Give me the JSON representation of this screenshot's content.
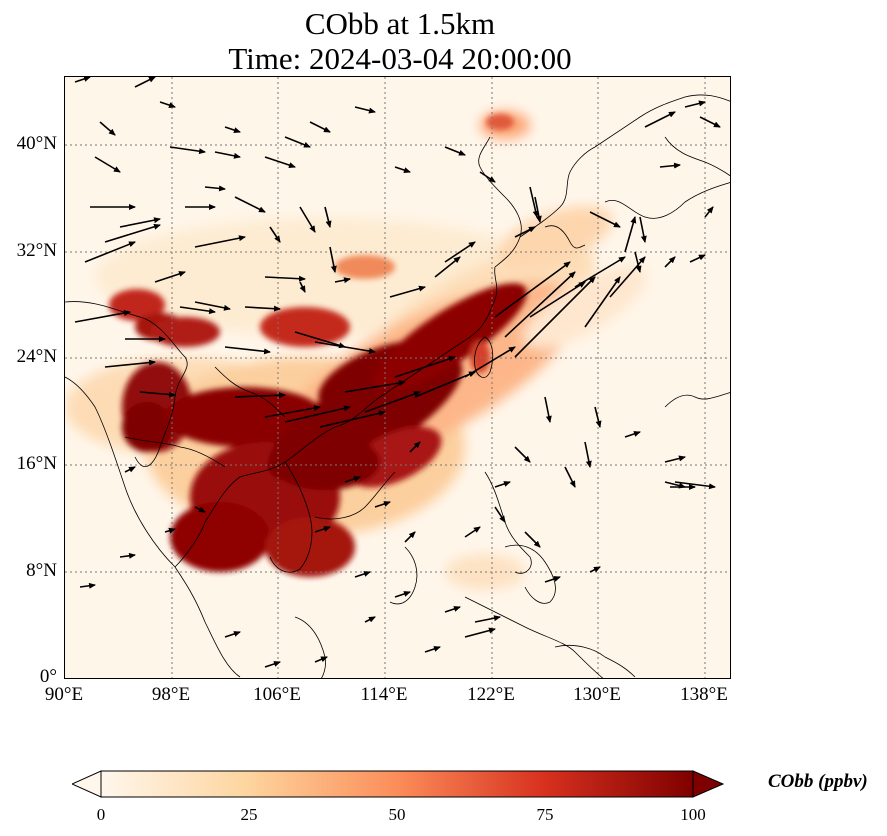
{
  "figure": {
    "title_line1": "CObb at 1.5km",
    "title_line2": "Time: 2024-03-04 20:00:00"
  },
  "map": {
    "lon_range": [
      90,
      140
    ],
    "lat_range": [
      0,
      45
    ],
    "lat_ticks": [
      {
        "value": 0,
        "label": "0°"
      },
      {
        "value": 8,
        "label": "8°N"
      },
      {
        "value": 16,
        "label": "16°N"
      },
      {
        "value": 24,
        "label": "24°N"
      },
      {
        "value": 32,
        "label": "32°N"
      },
      {
        "value": 40,
        "label": "40°N"
      }
    ],
    "lon_ticks": [
      {
        "value": 90,
        "label": "90°E"
      },
      {
        "value": 98,
        "label": "98°E"
      },
      {
        "value": 106,
        "label": "106°E"
      },
      {
        "value": 114,
        "label": "114°E"
      },
      {
        "value": 122,
        "label": "122°E"
      },
      {
        "value": 130,
        "label": "130°E"
      },
      {
        "value": 138,
        "label": "138°E"
      }
    ],
    "gridlines": true,
    "colormap": "OrRd",
    "wind_vectors": true
  },
  "colorbar": {
    "label": "CObb (ppbv)",
    "min": 0,
    "max": 100,
    "ticks": [
      "0",
      "25",
      "50",
      "75",
      "100"
    ],
    "extend": "both",
    "colors": [
      "#fff7ec",
      "#fdd49e",
      "#fc8d59",
      "#d7301f",
      "#7f0000"
    ]
  }
}
